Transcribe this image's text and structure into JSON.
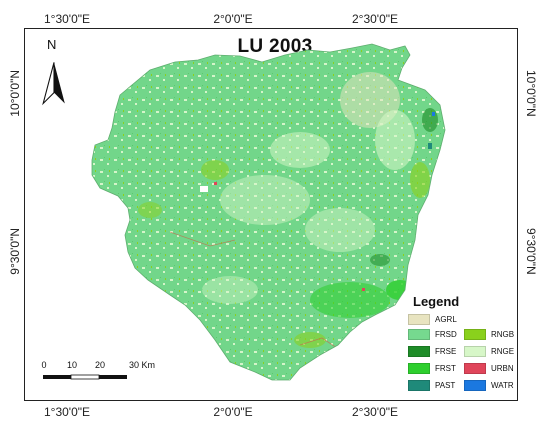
{
  "map": {
    "title": "LU 2003",
    "north_label": "N",
    "coords": {
      "top": [
        "1°30'0\"E",
        "2°0'0\"E",
        "2°30'0\"E"
      ],
      "bottom": [
        "1°30'0\"E",
        "2°0'0\"E",
        "2°30'0\"E"
      ],
      "left": [
        "10°0'0\"N",
        "9°30'0\"N"
      ],
      "right": [
        "10°0'0\"N",
        "9°30'0\"N"
      ]
    }
  },
  "scale_bar": {
    "ticks": [
      "0",
      "10",
      "20",
      "30 Km"
    ]
  },
  "legend": {
    "title": "Legend",
    "items": [
      {
        "code": "AGRL",
        "color": "#e8e4c0"
      },
      {
        "code": "FRSD",
        "color": "#76d98f"
      },
      {
        "code": "RNGB",
        "color": "#8ad11c"
      },
      {
        "code": "FRSE",
        "color": "#1e8c28"
      },
      {
        "code": "RNGE",
        "color": "#d7f7c8"
      },
      {
        "code": "FRST",
        "color": "#2ecf2e"
      },
      {
        "code": "URBN",
        "color": "#e0455a"
      },
      {
        "code": "PAST",
        "color": "#1f8a7a"
      },
      {
        "code": "WATR",
        "color": "#1b78e0"
      }
    ]
  }
}
